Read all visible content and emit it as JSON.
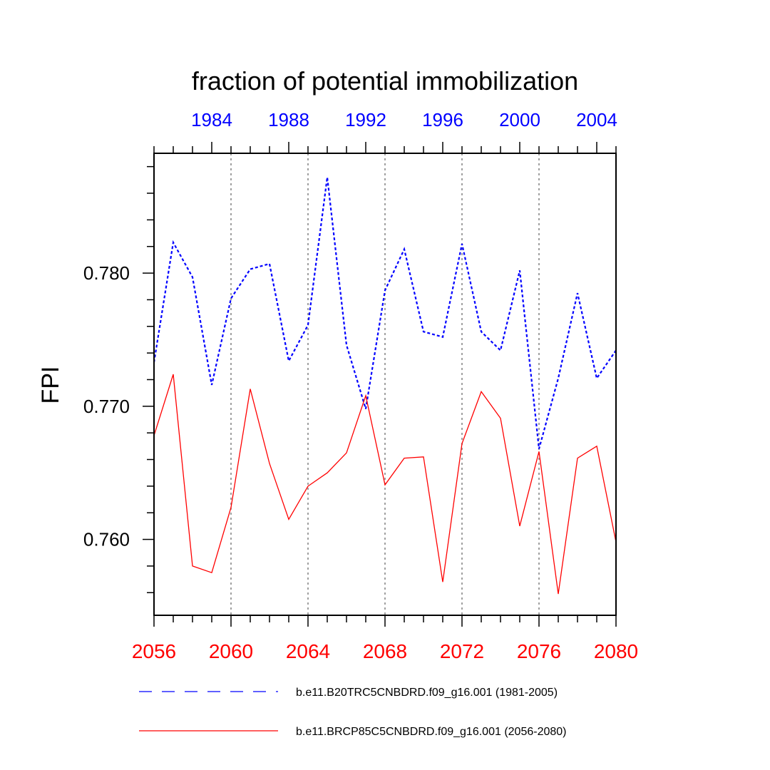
{
  "chart_data": {
    "type": "line",
    "title": "fraction of potential immobilization",
    "ylabel": "FPI",
    "ylim": [
      0.7543,
      0.789
    ],
    "y_ticks": [
      {
        "value": 0.76,
        "label": "0.760"
      },
      {
        "value": 0.77,
        "label": "0.770"
      },
      {
        "value": 0.78,
        "label": "0.780"
      }
    ],
    "x_bottom": {
      "range": [
        2056,
        2080
      ],
      "ticks": [
        "2056",
        "2060",
        "2064",
        "2068",
        "2072",
        "2076",
        "2080"
      ],
      "color": "#ff0000"
    },
    "x_top": {
      "range": [
        1981,
        2005
      ],
      "ticks": [
        "1984",
        "1988",
        "1992",
        "1996",
        "2000",
        "2004"
      ],
      "color": "#0000ff"
    },
    "grid": "vertical dotted at bottom-axis major ticks",
    "series": [
      {
        "name": "b.e11.B20TRC5CNBDRD.f09_g16.001 (1981-2005)",
        "axis": "top",
        "color": "#0000ff",
        "style": "dashed",
        "x": [
          1981,
          1982,
          1983,
          1984,
          1985,
          1986,
          1987,
          1988,
          1989,
          1990,
          1991,
          1992,
          1993,
          1994,
          1995,
          1996,
          1997,
          1998,
          1999,
          2000,
          2001,
          2002,
          2003,
          2004,
          2005
        ],
        "values": [
          0.7733,
          0.7823,
          0.7797,
          0.7716,
          0.7781,
          0.7803,
          0.7807,
          0.7734,
          0.7761,
          0.7872,
          0.7746,
          0.7698,
          0.7787,
          0.7818,
          0.7756,
          0.7752,
          0.7822,
          0.7756,
          0.7742,
          0.7802,
          0.7668,
          0.7721,
          0.7785,
          0.7721,
          0.7742
        ]
      },
      {
        "name": "b.e11.BRCP85C5CNBDRD.f09_g16.001 (2056-2080)",
        "axis": "bottom",
        "color": "#ff0000",
        "style": "solid",
        "x": [
          2056,
          2057,
          2058,
          2059,
          2060,
          2061,
          2062,
          2063,
          2064,
          2065,
          2066,
          2067,
          2068,
          2069,
          2070,
          2071,
          2072,
          2073,
          2074,
          2075,
          2076,
          2077,
          2078,
          2079,
          2080
        ],
        "values": [
          0.7678,
          0.7724,
          0.758,
          0.7575,
          0.7624,
          0.7713,
          0.7657,
          0.7615,
          0.764,
          0.765,
          0.7665,
          0.7708,
          0.7641,
          0.7661,
          0.7662,
          0.7568,
          0.7672,
          0.7711,
          0.7691,
          0.761,
          0.7666,
          0.7559,
          0.7661,
          0.767,
          0.7598
        ]
      }
    ],
    "legend_position": "bottom"
  }
}
